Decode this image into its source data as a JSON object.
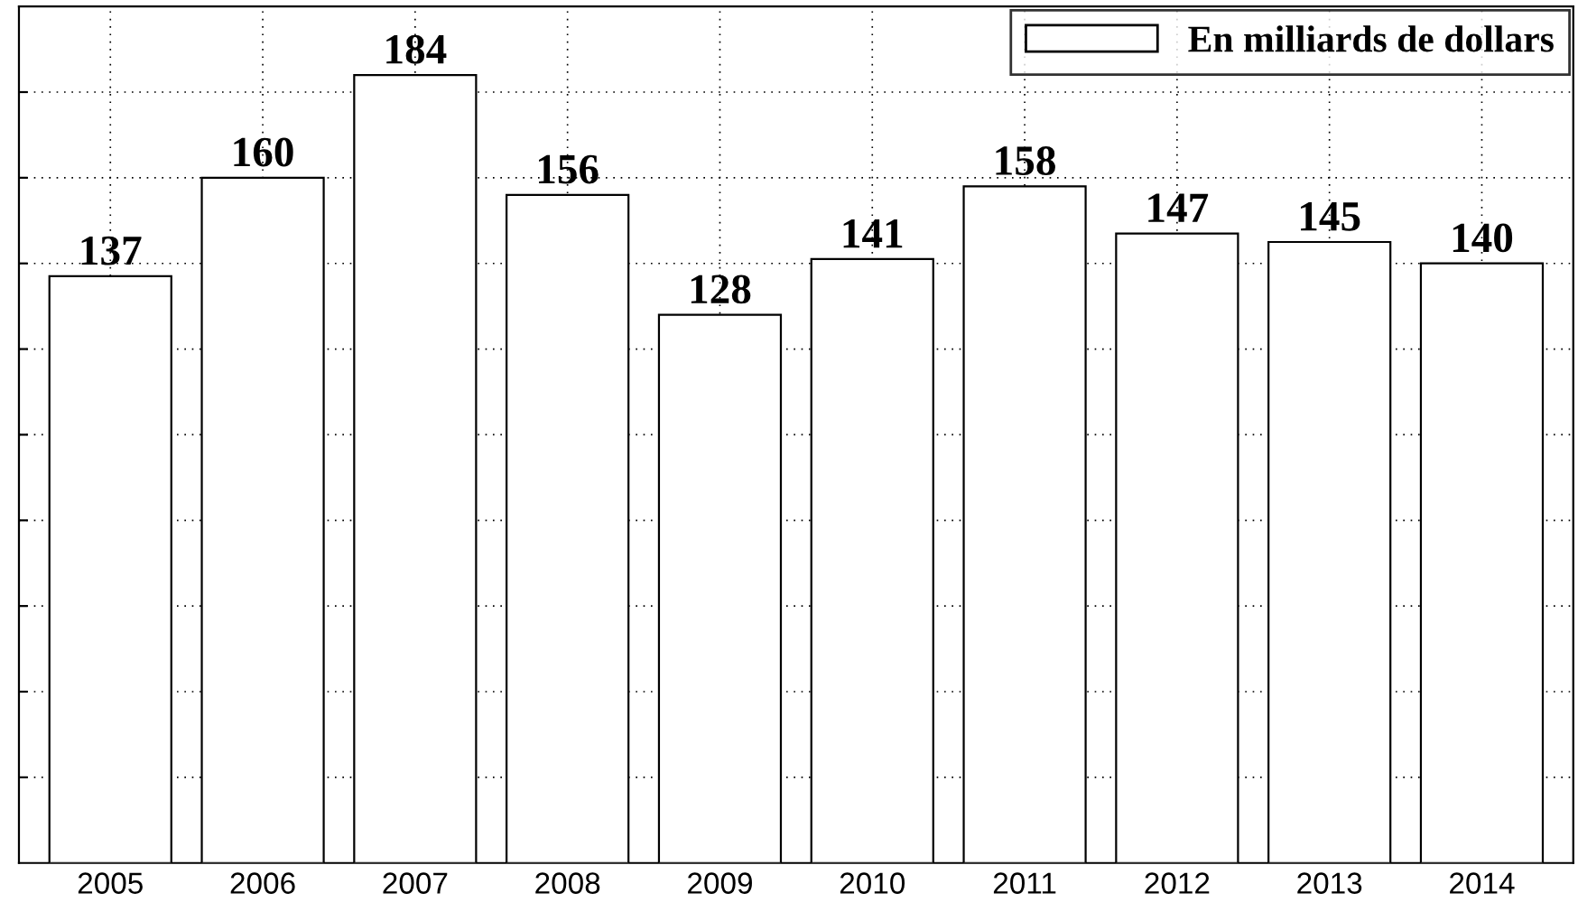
{
  "chart_data": {
    "type": "bar",
    "categories": [
      "2005",
      "2006",
      "2007",
      "2008",
      "2009",
      "2010",
      "2011",
      "2012",
      "2013",
      "2014"
    ],
    "series": [
      {
        "name": "En milliards de dollars",
        "color": "#ffffff",
        "values": [
          137,
          160,
          184,
          156,
          128,
          141,
          158,
          147,
          145,
          140
        ]
      }
    ],
    "data_labels": true,
    "ylim": [
      0,
      200
    ],
    "yticks": [
      {
        "value": 20,
        "label": null
      },
      {
        "value": 40,
        "label": null
      },
      {
        "value": 60,
        "label": null
      },
      {
        "value": 80,
        "label": null
      },
      {
        "value": 100,
        "label": null
      },
      {
        "value": 120,
        "label": null
      },
      {
        "value": 140,
        "label": null
      },
      {
        "value": 160,
        "label": null
      },
      {
        "value": 180,
        "label": null
      }
    ],
    "tick_labels": "x",
    "grid": true,
    "legend": "top right"
  }
}
